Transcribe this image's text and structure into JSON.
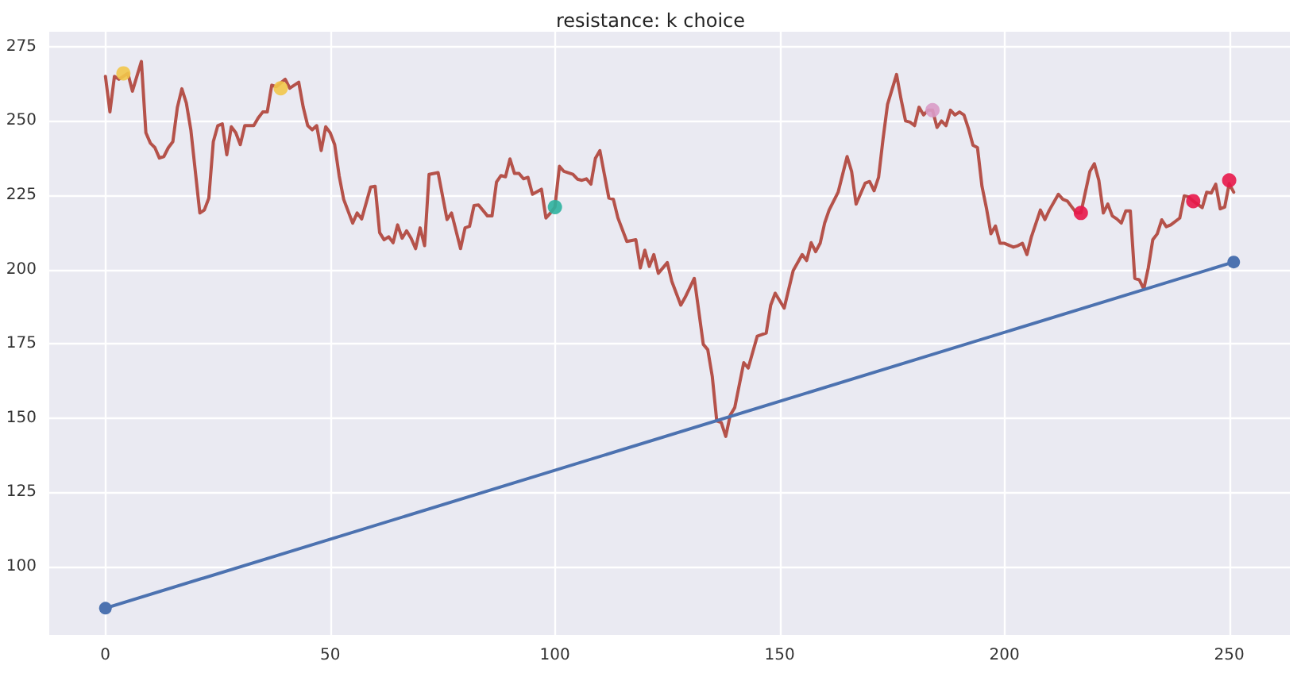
{
  "chart_data": {
    "type": "line",
    "title": "resistance: k choice",
    "xlim": [
      -12.5,
      263.5
    ],
    "ylim": [
      77,
      280
    ],
    "xticks": [
      0,
      50,
      100,
      150,
      200,
      250
    ],
    "yticks": [
      100,
      125,
      150,
      175,
      200,
      225,
      250,
      275
    ],
    "grid": true,
    "series": [
      {
        "color": "#b5524a",
        "marker": "none",
        "x": [
          0,
          1,
          2,
          3,
          5,
          6,
          8,
          9,
          10,
          11,
          12,
          13,
          14,
          15,
          16,
          17,
          18,
          19,
          21,
          22,
          23,
          24,
          25,
          26,
          27,
          28,
          29,
          30,
          31,
          33,
          34,
          35,
          36,
          37,
          38,
          40,
          41,
          43,
          44,
          45,
          46,
          47,
          48,
          49,
          50,
          51,
          52,
          53,
          55,
          56,
          57,
          59,
          60,
          61,
          62,
          63,
          64,
          65,
          66,
          67,
          68,
          69,
          70,
          71,
          72,
          74,
          76,
          77,
          79,
          80,
          81,
          82,
          83,
          85,
          86,
          87,
          88,
          89,
          90,
          91,
          92,
          93,
          94,
          95,
          97,
          98,
          99,
          100,
          101,
          102,
          104,
          105,
          106,
          107,
          108,
          109,
          110,
          112,
          113,
          114,
          116,
          118,
          119,
          120,
          121,
          122,
          123,
          125,
          126,
          128,
          129,
          131,
          132,
          133,
          134,
          135,
          136,
          137,
          138,
          139,
          140,
          142,
          143,
          145,
          147,
          148,
          149,
          151,
          153,
          155,
          156,
          157,
          158,
          159,
          160,
          161,
          163,
          165,
          166,
          167,
          169,
          170,
          171,
          172,
          173,
          174,
          176,
          177,
          178,
          179,
          180,
          181,
          182,
          183,
          184,
          185,
          186,
          187,
          188,
          189,
          190,
          191,
          192,
          193,
          194,
          195,
          196,
          197,
          198,
          199,
          200,
          202,
          203,
          204,
          205,
          206,
          208,
          209,
          210,
          212,
          213,
          214,
          216,
          217,
          219,
          220,
          221,
          222,
          223,
          224,
          225,
          226,
          227,
          228,
          229,
          230,
          231,
          232,
          233,
          234,
          235,
          236,
          237,
          239,
          240,
          241,
          242,
          244,
          245,
          246,
          247,
          248,
          249,
          250,
          251
        ],
        "values": [
          265,
          253,
          265,
          264,
          266,
          260,
          270,
          246,
          242.5,
          241,
          237.5,
          238,
          241,
          243,
          254.5,
          260.8,
          256,
          247,
          219,
          220,
          224,
          243,
          248.4,
          249,
          238.6,
          248,
          246,
          242,
          248.4,
          248.4,
          251,
          253,
          253,
          262,
          261.5,
          264,
          261,
          263,
          254.6,
          248.4,
          247,
          248.4,
          240,
          248,
          246,
          242,
          231.5,
          223.6,
          215.6,
          219,
          217,
          227.7,
          228,
          212.4,
          210,
          211,
          209,
          215,
          210.5,
          213,
          210.5,
          207,
          214,
          208,
          232,
          232.6,
          216.8,
          219,
          207,
          214,
          214.5,
          221.5,
          221.7,
          218,
          218,
          229.4,
          231.6,
          231.2,
          237.2,
          232.3,
          232.3,
          230.5,
          231,
          225.3,
          227,
          217.3,
          219,
          221,
          234.7,
          233,
          232,
          230.4,
          230,
          230.5,
          228.7,
          237.4,
          240,
          224,
          223.6,
          217.4,
          209.4,
          210,
          200.5,
          206.5,
          201,
          205,
          198.7,
          202.3,
          196,
          188,
          190.7,
          197,
          186,
          174.8,
          173,
          164,
          149,
          148.5,
          143.8,
          151,
          153.5,
          168.6,
          166.8,
          177.5,
          178.6,
          188,
          192,
          187,
          199.6,
          205,
          203,
          209,
          206,
          208.8,
          215.6,
          220,
          226,
          238,
          233,
          222,
          229,
          229.6,
          226.5,
          231,
          244,
          255.6,
          265.6,
          257.3,
          250,
          249.6,
          248.4,
          254.6,
          252,
          253.6,
          253.6,
          247.8,
          250,
          248.4,
          253.6,
          252,
          253,
          252,
          247.4,
          241.8,
          241,
          228,
          220.6,
          212,
          214.6,
          208.8,
          208.8,
          207.5,
          208,
          208.8,
          205,
          211,
          220,
          216.8,
          220,
          225.3,
          223.6,
          223,
          219,
          219,
          233,
          235.6,
          230,
          219,
          222,
          218,
          217,
          215.6,
          219.7,
          219.7,
          197,
          196.5,
          193.4,
          200.5,
          210,
          212,
          216.7,
          214.4,
          215,
          217.3,
          224.8,
          224.4,
          223,
          220.8,
          226,
          225.7,
          228.7,
          220.4,
          221,
          228.9,
          226
        ]
      },
      {
        "color": "#4c72b0",
        "marker": "circle",
        "x": [
          0,
          251
        ],
        "values": [
          86,
          202.5
        ]
      },
      {
        "type": "scatter",
        "color": "#f2c64a",
        "marker": "circle",
        "x": [
          4,
          39
        ],
        "values": [
          266,
          261
        ]
      },
      {
        "type": "scatter",
        "color": "#2eb3a0",
        "marker": "circle",
        "x": [
          100
        ],
        "values": [
          221
        ]
      },
      {
        "type": "scatter",
        "color": "#d99bc7",
        "marker": "circle",
        "x": [
          184
        ],
        "values": [
          253.6
        ]
      },
      {
        "type": "scatter",
        "color": "#e8174a",
        "marker": "circle",
        "x": [
          217,
          242,
          250
        ],
        "values": [
          219,
          223,
          230
        ]
      }
    ]
  }
}
